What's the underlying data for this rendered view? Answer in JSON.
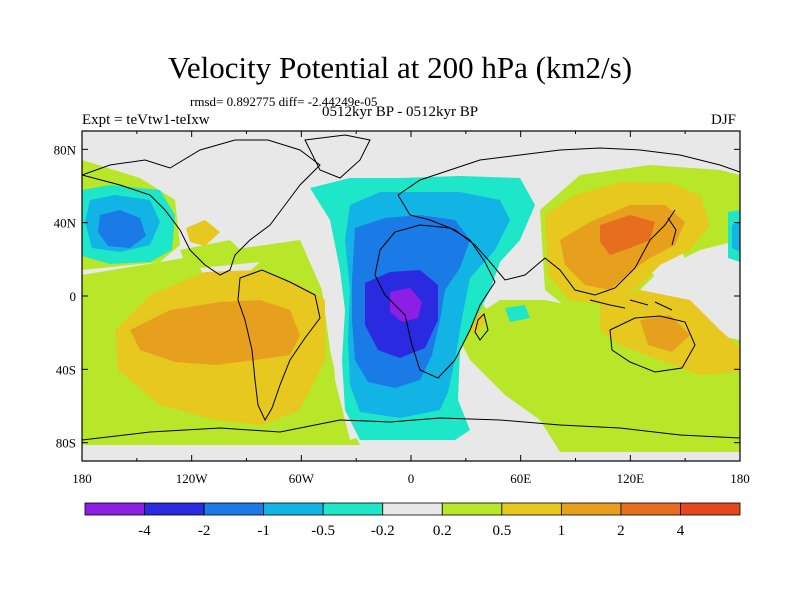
{
  "header": {
    "title": "Velocity Potential at 200 hPa (km2/s)",
    "stats": "rmsd= 0.892775 diff= -2.44249e-05",
    "experiment": "Expt = teVtw1-teIxw",
    "period": "0512kyr BP - 0512kyr BP",
    "season": "DJF"
  },
  "axes": {
    "lat_ticks": [
      {
        "lat": 80,
        "label": "80N"
      },
      {
        "lat": 40,
        "label": "40N"
      },
      {
        "lat": 0,
        "label": "0"
      },
      {
        "lat": -40,
        "label": "40S"
      },
      {
        "lat": -80,
        "label": "80S"
      }
    ],
    "lon_ticks": [
      {
        "lon": -180,
        "label": "180"
      },
      {
        "lon": -120,
        "label": "120W"
      },
      {
        "lon": -60,
        "label": "60W"
      },
      {
        "lon": 0,
        "label": "0"
      },
      {
        "lon": 60,
        "label": "60E"
      },
      {
        "lon": 120,
        "label": "120E"
      },
      {
        "lon": 180,
        "label": "180"
      }
    ]
  },
  "colorbar": {
    "colors": [
      "#8c1ee6",
      "#2a2ae0",
      "#1a7ae6",
      "#12b4e6",
      "#1ee6c8",
      "#e8e8e8",
      "#b8e628",
      "#e6c81e",
      "#e6a01e",
      "#e66e1e",
      "#e6461e"
    ],
    "labels": [
      "-4",
      "-2",
      "-1",
      "-0.5",
      "-0.2",
      "0.2",
      "0.5",
      "1",
      "2",
      "4"
    ]
  }
}
